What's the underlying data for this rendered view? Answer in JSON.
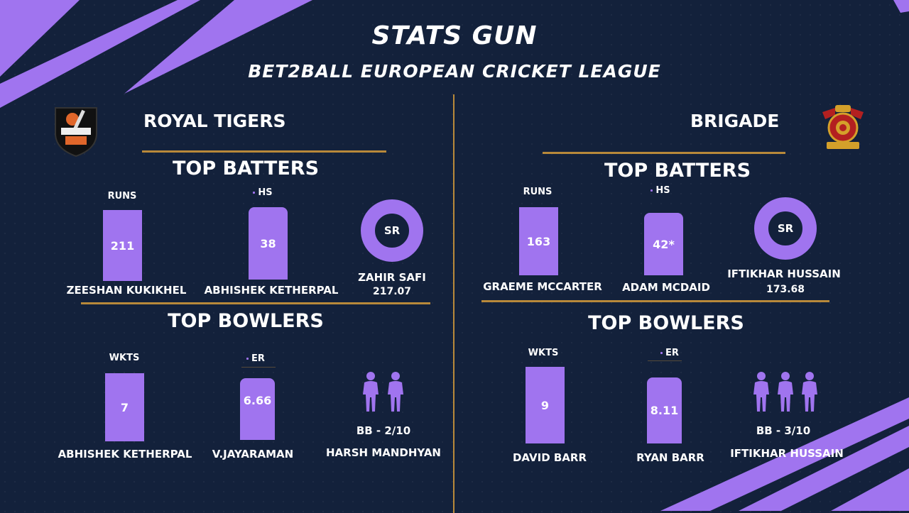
{
  "header": {
    "title": "STATS GUN",
    "subtitle": "BET2BALL EUROPEAN CRICKET LEAGUE"
  },
  "colors": {
    "background": "#13213b",
    "accent": "#a074ef",
    "gold": "#b8893a",
    "text": "#ffffff"
  },
  "left": {
    "team": "ROYAL TIGERS",
    "logo_icon": "royal-tigers-logo",
    "batters": {
      "heading": "TOP BATTERS",
      "runs_label": "RUNS",
      "runs_value": "211",
      "runs_player": "ZEESHAN KUKIKHEL",
      "hs_label": "HS",
      "hs_value": "38",
      "hs_player": "ABHISHEK KETHERPAL",
      "sr_label": "SR",
      "sr_player": "ZAHIR SAFI",
      "sr_value": "217.07"
    },
    "bowlers": {
      "heading": "TOP BOWLERS",
      "wkts_label": "WKTS",
      "wkts_value": "7",
      "wkts_player": "ABHISHEK KETHERPAL",
      "er_label": "ER",
      "er_value": "6.66",
      "er_player": "V.JAYARAMAN",
      "bb_label": "BB - 2/10",
      "bb_player": "HARSH MANDHYAN",
      "bb_icon": "people-icon"
    }
  },
  "right": {
    "team": "BRIGADE",
    "logo_icon": "brigade-logo",
    "batters": {
      "heading": "TOP BATTERS",
      "runs_label": "RUNS",
      "runs_value": "163",
      "runs_player": "GRAEME MCCARTER",
      "hs_label": "HS",
      "hs_value": "42*",
      "hs_player": "ADAM MCDAID",
      "sr_label": "SR",
      "sr_player": "IFTIKHAR HUSSAIN",
      "sr_value": "173.68"
    },
    "bowlers": {
      "heading": "TOP BOWLERS",
      "wkts_label": "WKTS",
      "wkts_value": "9",
      "wkts_player": "DAVID BARR",
      "er_label": "ER",
      "er_value": "8.11",
      "er_player": "RYAN BARR",
      "bb_label": "BB - 3/10",
      "bb_player": "IFTIKHAR HUSSAIN",
      "bb_icon": "people-icon"
    }
  }
}
